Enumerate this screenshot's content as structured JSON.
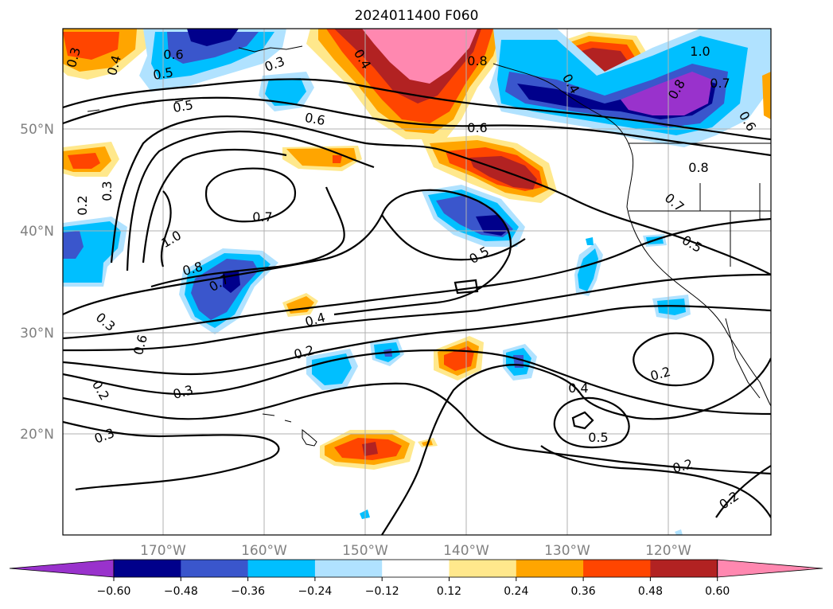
{
  "title": "2024011400 F060",
  "lat_labels": [
    "50°N",
    "40°N",
    "30°N",
    "20°N"
  ],
  "lon_labels": [
    "170°W",
    "160°W",
    "150°W",
    "140°W",
    "130°W",
    "120°W"
  ],
  "contour_labels": [
    "0.3",
    "0.4",
    "0.6",
    "0.5",
    "0.3",
    "0.5",
    "0.6",
    "0.8",
    "0.6",
    "1.0",
    "0.7",
    "0.8",
    "0.6",
    "0.8",
    "0.7",
    "0.2",
    "0.3",
    "1.0",
    "0.8",
    "0.7",
    "0.4",
    "0.5",
    "0.5",
    "0.4",
    "0.4",
    "0.6",
    "0.7",
    "0.2",
    "0.3",
    "0.2",
    "0.3",
    "0.3",
    "0.4",
    "0.5",
    "0.2",
    "0.2",
    "0.2"
  ],
  "colorbar": {
    "colors": [
      "#9932cc",
      "#00008b",
      "#3a56cc",
      "#00bfff",
      "#b0e2ff",
      "#ffffff",
      "#ffe88c",
      "#ffa500",
      "#ff4500",
      "#b22222",
      "#ff88b0"
    ],
    "ticks": [
      "−0.60",
      "−0.48",
      "−0.36",
      "−0.24",
      "−0.12",
      "0.12",
      "0.24",
      "0.36",
      "0.48",
      "0.60"
    ]
  }
}
